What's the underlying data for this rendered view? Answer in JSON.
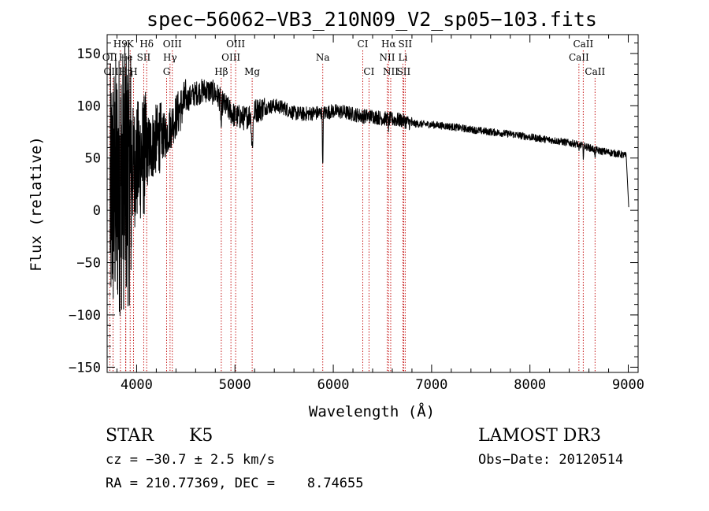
{
  "chart_data": {
    "type": "line",
    "title": "spec−56062−VB3_210N09_V2_sp05−103.fits",
    "xlabel": "Wavelength (Å)",
    "ylabel": "Flux (relative)",
    "xlim": [
      3700,
      9100
    ],
    "ylim": [
      -155,
      168
    ],
    "x_ticks": [
      {
        "value": 4000,
        "label": "4000"
      },
      {
        "value": 5000,
        "label": "5000"
      },
      {
        "value": 6000,
        "label": "6000"
      },
      {
        "value": 7000,
        "label": "7000"
      },
      {
        "value": 8000,
        "label": "8000"
      },
      {
        "value": 9000,
        "label": "9000"
      }
    ],
    "y_ticks": [
      {
        "value": 150,
        "label": "150"
      },
      {
        "value": 100,
        "label": "100"
      },
      {
        "value": 50,
        "label": "50"
      },
      {
        "value": 0,
        "label": "0"
      },
      {
        "value": -50,
        "label": "−50"
      },
      {
        "value": -100,
        "label": "−100"
      },
      {
        "value": -150,
        "label": "−150"
      }
    ],
    "spectrum": {
      "name": "flux",
      "color": "#000000",
      "continuum": [
        [
          3730,
          10
        ],
        [
          3800,
          25
        ],
        [
          3900,
          35
        ],
        [
          4000,
          45
        ],
        [
          4100,
          55
        ],
        [
          4200,
          68
        ],
        [
          4300,
          72
        ],
        [
          4400,
          90
        ],
        [
          4500,
          105
        ],
        [
          4600,
          112
        ],
        [
          4700,
          115
        ],
        [
          4800,
          112
        ],
        [
          4900,
          100
        ],
        [
          5000,
          90
        ],
        [
          5100,
          88
        ],
        [
          5200,
          95
        ],
        [
          5300,
          98
        ],
        [
          5400,
          100
        ],
        [
          5500,
          98
        ],
        [
          5600,
          93
        ],
        [
          5700,
          92
        ],
        [
          5800,
          93
        ],
        [
          5900,
          93
        ],
        [
          6000,
          95
        ],
        [
          6100,
          94
        ],
        [
          6200,
          92
        ],
        [
          6300,
          90
        ],
        [
          6400,
          90
        ],
        [
          6500,
          88
        ],
        [
          6600,
          87
        ],
        [
          6700,
          86
        ],
        [
          6800,
          83
        ],
        [
          7000,
          82
        ],
        [
          7200,
          80
        ],
        [
          7500,
          76
        ],
        [
          7800,
          73
        ],
        [
          8000,
          70
        ],
        [
          8300,
          66
        ],
        [
          8500,
          63
        ],
        [
          8700,
          57
        ],
        [
          8900,
          54
        ],
        [
          8980,
          52
        ]
      ],
      "absorption": [
        {
          "wavelength": 4861,
          "depth": 25,
          "width": 6
        },
        {
          "wavelength": 5175,
          "depth": 32,
          "width": 10
        },
        {
          "wavelength": 5893,
          "depth": 55,
          "width": 4
        },
        {
          "wavelength": 6563,
          "depth": 8,
          "width": 4
        },
        {
          "wavelength": 8498,
          "depth": 8,
          "width": 4
        },
        {
          "wavelength": 8542,
          "depth": 10,
          "width": 4
        },
        {
          "wavelength": 8662,
          "depth": 9,
          "width": 4
        }
      ],
      "end_point": [
        9005,
        3
      ]
    },
    "spectral_lines": {
      "color": "#c00000",
      "lines": [
        {
          "label": "H9",
          "wavelength": 3835,
          "row": 0
        },
        {
          "label": "K",
          "wavelength": 3934,
          "row": 0
        },
        {
          "label": "Hδ",
          "wavelength": 4102,
          "row": 0
        },
        {
          "label": "OIII",
          "wavelength": 4363,
          "row": 0
        },
        {
          "label": "OIII",
          "wavelength": 5007,
          "row": 0
        },
        {
          "label": "CI",
          "wavelength": 6300,
          "row": 0
        },
        {
          "label": "Hα",
          "wavelength": 6563,
          "row": 0
        },
        {
          "label": "SII",
          "wavelength": 6731,
          "row": 0
        },
        {
          "label": "CaII",
          "wavelength": 8542,
          "row": 0
        },
        {
          "label": "OII",
          "wavelength": 3727,
          "row": 1
        },
        {
          "label": "He",
          "wavelength": 3889,
          "row": 1
        },
        {
          "label": "SII",
          "wavelength": 4072,
          "row": 1
        },
        {
          "label": "Hγ",
          "wavelength": 4340,
          "row": 1
        },
        {
          "label": "OIII",
          "wavelength": 4959,
          "row": 1
        },
        {
          "label": "Na",
          "wavelength": 5893,
          "row": 1
        },
        {
          "label": "NII",
          "wavelength": 6548,
          "row": 1
        },
        {
          "label": "Li",
          "wavelength": 6708,
          "row": 1
        },
        {
          "label": "CaII",
          "wavelength": 8498,
          "row": 1
        },
        {
          "label": "OIII",
          "wavelength": 3760,
          "row": 2
        },
        {
          "label": "Hη",
          "wavelength": 3890,
          "row": 2
        },
        {
          "label": "H",
          "wavelength": 3968,
          "row": 2
        },
        {
          "label": "G",
          "wavelength": 4305,
          "row": 2
        },
        {
          "label": "Hβ",
          "wavelength": 4861,
          "row": 2
        },
        {
          "label": "Mg",
          "wavelength": 5175,
          "row": 2
        },
        {
          "label": "CI",
          "wavelength": 6363,
          "row": 2
        },
        {
          "label": "NII",
          "wavelength": 6584,
          "row": 2
        },
        {
          "label": "SII",
          "wavelength": 6716,
          "row": 2
        },
        {
          "label": "CaII",
          "wavelength": 8662,
          "row": 2
        }
      ]
    }
  },
  "info": {
    "object_class": "STAR",
    "subclass": "K5",
    "survey": "LAMOST DR3",
    "redshift": "cz = −30.7 ± 2.5 km/s",
    "obs_date": "Obs−Date: 20120514",
    "coords": "RA = 210.77369, DEC =    8.74655"
  }
}
